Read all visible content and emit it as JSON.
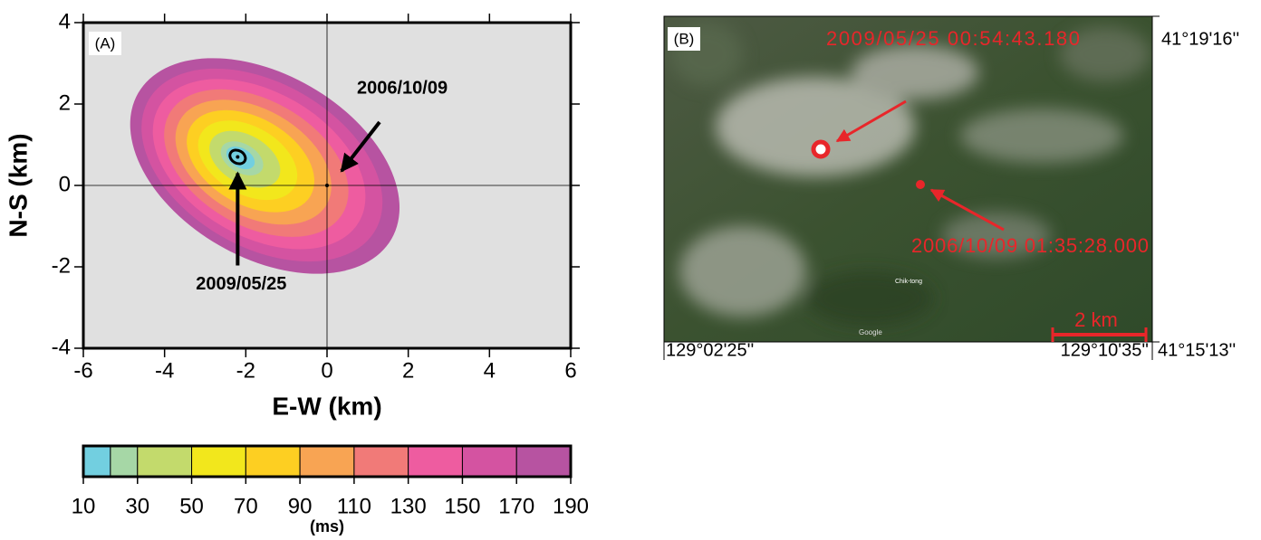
{
  "chart_data": {
    "type": "contour",
    "panel_label": "(A)",
    "xlabel": "E-W (km)",
    "ylabel": "N-S (km)",
    "xlim": [
      -6,
      6
    ],
    "ylim": [
      -4,
      4
    ],
    "xticks": [
      -6,
      -4,
      -2,
      0,
      2,
      4,
      6
    ],
    "yticks": [
      -4,
      -2,
      0,
      2,
      4
    ],
    "annotations": [
      {
        "text": "2006/10/09",
        "x": 0,
        "y": 0
      },
      {
        "text": "2009/05/25",
        "x": -2.2,
        "y": 0.7
      }
    ],
    "colorbar": {
      "label": "(ms)",
      "bins": [
        10,
        20,
        30,
        50,
        70,
        90,
        110,
        130,
        150,
        170,
        190
      ],
      "ticks": [
        10,
        30,
        50,
        70,
        90,
        110,
        130,
        150,
        170,
        190
      ],
      "colors": [
        "#72cfe0",
        "#a6d7a6",
        "#c3da6c",
        "#f2e71c",
        "#fdcf22",
        "#f8a453",
        "#f17a78",
        "#ee5ca0",
        "#d453a1",
        "#b753a1"
      ]
    }
  },
  "map": {
    "panel_label": "(B)",
    "event_2009": "2009/05/25 00:54:43.180",
    "event_2006": "2006/10/09 01:35:28.000",
    "scale": "2  km",
    "place": "Chik-tong",
    "credit": "Google",
    "lat_top": "41°19'16''",
    "lat_bottom": "41°15'13''",
    "lon_left": "129°02'25''",
    "lon_right": "129°10'35''"
  }
}
